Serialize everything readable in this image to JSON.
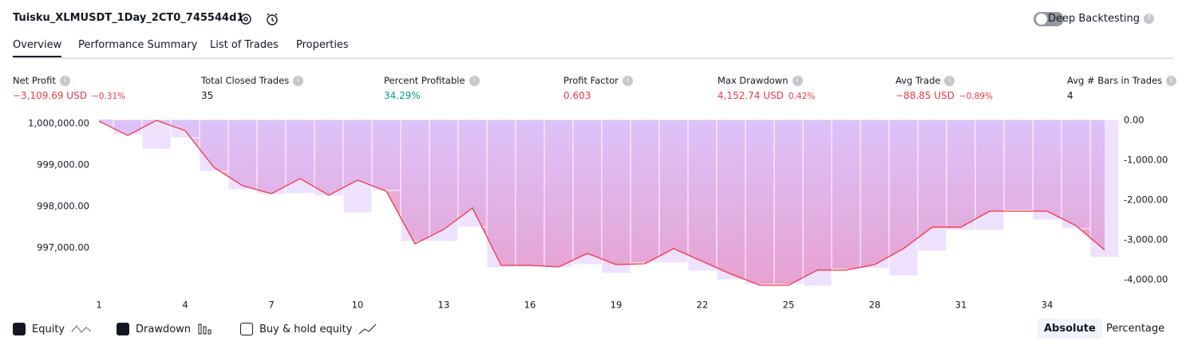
{
  "header": {
    "title": "Tuisku_XLMUSDT_1Day_2CT0_745544d1",
    "deep_backtesting": "Deep Backtesting"
  },
  "tabs": [
    "Overview",
    "Performance Summary",
    "List of Trades",
    "Properties"
  ],
  "metrics": [
    {
      "label": "Net Profit",
      "value": "−3,109.69 USD",
      "change": "−0.31%"
    },
    {
      "label": "Total Closed Trades",
      "value": "35"
    },
    {
      "label": "Percent Profitable",
      "value": "34.29%"
    },
    {
      "label": "Profit Factor",
      "value": "0.603"
    },
    {
      "label": "Max Drawdown",
      "value": "4,152.74 USD",
      "change": "0.42%"
    },
    {
      "label": "Avg Trade",
      "value": "−88.85 USD",
      "change": "−0.89%"
    },
    {
      "label": "Avg # Bars in Trades",
      "value": "4"
    }
  ],
  "chart_data": {
    "type": "combo",
    "categories": [
      1,
      null,
      null,
      4,
      null,
      null,
      7,
      null,
      null,
      10,
      null,
      null,
      13,
      null,
      null,
      16,
      null,
      null,
      19,
      null,
      null,
      22,
      null,
      null,
      25,
      null,
      null,
      28,
      null,
      null,
      31,
      null,
      null,
      34,
      null,
      null
    ],
    "series": [
      {
        "name": "Equity",
        "type": "line",
        "color": "#f23645",
        "values": [
          1000000,
          999654,
          1000020,
          999770,
          998885,
          998442,
          998250,
          998615,
          998212,
          998577,
          998308,
          997038,
          997385,
          997904,
          996519,
          996519,
          996481,
          996808,
          996538,
          996558,
          996923,
          996615,
          996308,
          996038,
          996038,
          996404,
          996404,
          996538,
          996923,
          997442,
          997442,
          997827,
          997827,
          997827,
          997481,
          996890
        ]
      },
      {
        "name": "Drawdown",
        "type": "bar",
        "axis": "y2",
        "color": "#d9bdfc",
        "values": [
          0,
          -380,
          -740,
          -460,
          -1300,
          -1760,
          -1880,
          -1860,
          -1920,
          -2340,
          -1780,
          -3060,
          -3060,
          -2700,
          -3720,
          -3700,
          -3720,
          -3640,
          -3860,
          -3600,
          -3600,
          -3800,
          -4020,
          -4140,
          -4140,
          -4180,
          -3760,
          -3740,
          -3920,
          -3300,
          -2780,
          -2780,
          -2280,
          -2520,
          -2740,
          -3460
        ]
      }
    ],
    "ylim": [
      996000,
      1000040
    ],
    "yticks": [
      {
        "value": 1000000,
        "label": "1,000,000.00"
      },
      {
        "value": 999000,
        "label": "999,000.00"
      },
      {
        "value": 998000,
        "label": "998,000.00"
      },
      {
        "value": 997000,
        "label": "997,000.00"
      }
    ],
    "y2lim": [
      -4200,
      0
    ],
    "y2ticks": [
      {
        "value": 0,
        "label": "0.00"
      },
      {
        "value": -1000,
        "label": "-1,000.00"
      },
      {
        "value": -2000,
        "label": "-2,000.00"
      },
      {
        "value": -3000,
        "label": "-3,000.00"
      },
      {
        "value": -4000,
        "label": "-4,000.00"
      }
    ]
  },
  "toggles": {
    "buy_hold": "Buy & hold equity"
  },
  "scale_modes": [
    "Absolute",
    "Percentage"
  ]
}
